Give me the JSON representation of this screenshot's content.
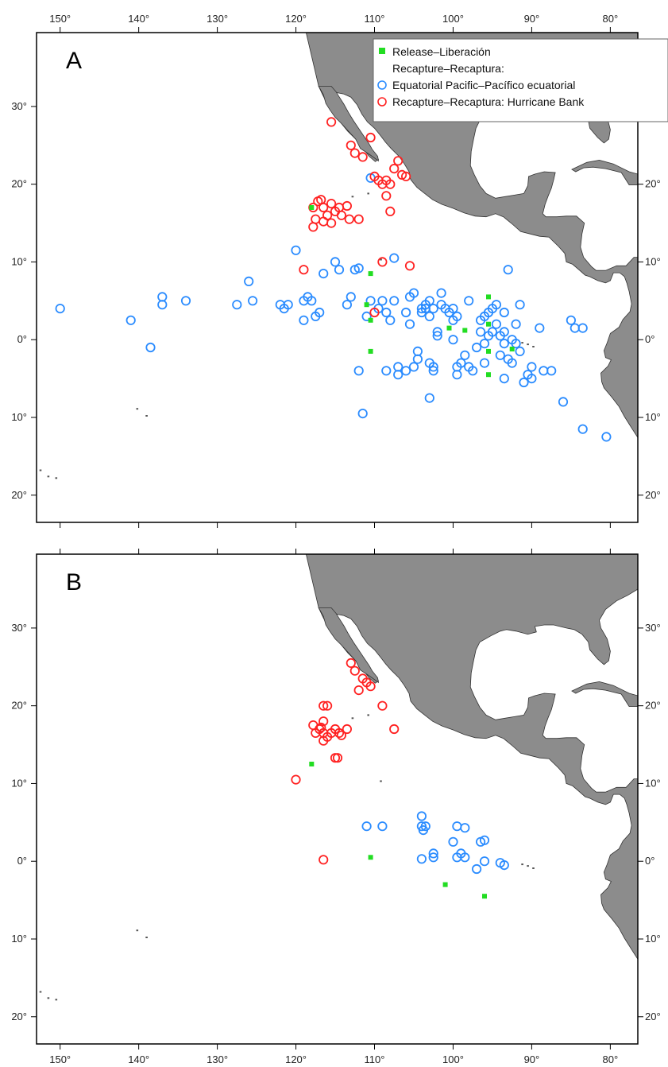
{
  "panels": [
    {
      "label": "A",
      "legend": {
        "items": [
          {
            "marker": "square",
            "color": "#22dd22",
            "text": "Release–Liberación"
          },
          {
            "marker": "none",
            "color": "",
            "text": "Recapture–Recaptura:"
          },
          {
            "marker": "circle",
            "color": "#2b8cff",
            "text": "Equatorial Pacific–Pacífico ecuatorial"
          },
          {
            "marker": "circle",
            "color": "#ff2222",
            "text": "Recapture–Recaptura: Hurricane Bank"
          }
        ]
      },
      "release": [
        [
          -118,
          17
        ],
        [
          -110.5,
          8.5
        ],
        [
          -111,
          4.5
        ],
        [
          -110.5,
          2.5
        ],
        [
          -110.5,
          -1.5
        ],
        [
          -100.5,
          1.5
        ],
        [
          -98.5,
          1.2
        ],
        [
          -95.5,
          5.5
        ],
        [
          -95.5,
          2
        ],
        [
          -95.5,
          -1.5
        ],
        [
          -95.5,
          -4.5
        ],
        [
          -92.5,
          -1.2
        ]
      ],
      "red": [
        [
          -115.5,
          28
        ],
        [
          -113,
          25
        ],
        [
          -112.5,
          24
        ],
        [
          -111.5,
          23.5
        ],
        [
          -110.5,
          26
        ],
        [
          -117.8,
          17
        ],
        [
          -117.2,
          17.8
        ],
        [
          -116.8,
          18
        ],
        [
          -116.5,
          17
        ],
        [
          -116,
          16
        ],
        [
          -115.5,
          17.5
        ],
        [
          -115,
          16.5
        ],
        [
          -114.5,
          17
        ],
        [
          -114.2,
          16
        ],
        [
          -113.5,
          17.2
        ],
        [
          -113.2,
          15.5
        ],
        [
          -112,
          15.5
        ],
        [
          -117.5,
          15.5
        ],
        [
          -117.8,
          14.5
        ],
        [
          -116.5,
          15.2
        ],
        [
          -115.5,
          15
        ],
        [
          -109.5,
          20.5
        ],
        [
          -109,
          20
        ],
        [
          -108.5,
          20.5
        ],
        [
          -108,
          20
        ],
        [
          -108.5,
          18.5
        ],
        [
          -108,
          16.5
        ],
        [
          -107.5,
          22
        ],
        [
          -107,
          23
        ],
        [
          -106,
          21
        ],
        [
          -106.5,
          21.2
        ],
        [
          -110,
          21
        ],
        [
          -119,
          9
        ],
        [
          -109,
          10
        ],
        [
          -105.5,
          9.5
        ],
        [
          -110,
          3.5
        ]
      ],
      "blue": [
        [
          -150,
          4
        ],
        [
          -141,
          2.5
        ],
        [
          -138.5,
          -1
        ],
        [
          -137,
          4.5
        ],
        [
          -137,
          5.5
        ],
        [
          -134,
          5
        ],
        [
          -127.5,
          4.5
        ],
        [
          -126,
          7.5
        ],
        [
          -125.5,
          5
        ],
        [
          -122,
          4.5
        ],
        [
          -121.5,
          4
        ],
        [
          -121,
          4.5
        ],
        [
          -120,
          11.5
        ],
        [
          -119,
          5
        ],
        [
          -119,
          2.5
        ],
        [
          -118.5,
          5.5
        ],
        [
          -118,
          5
        ],
        [
          -117.5,
          3
        ],
        [
          -117,
          3.5
        ],
        [
          -116.5,
          8.5
        ],
        [
          -115,
          10
        ],
        [
          -114.5,
          9
        ],
        [
          -113.5,
          4.5
        ],
        [
          -113,
          5.5
        ],
        [
          -112.5,
          9
        ],
        [
          -112,
          9.2
        ],
        [
          -112,
          -4
        ],
        [
          -111.5,
          -9.5
        ],
        [
          -111,
          3
        ],
        [
          -110.5,
          5
        ],
        [
          -110.5,
          20.8
        ],
        [
          -109.5,
          4
        ],
        [
          -109,
          5
        ],
        [
          -108.5,
          3.5
        ],
        [
          -108.5,
          -4
        ],
        [
          -108,
          2.5
        ],
        [
          -107.5,
          10.5
        ],
        [
          -107.5,
          5
        ],
        [
          -107,
          -4.5
        ],
        [
          -107,
          -3.5
        ],
        [
          -106,
          3.5
        ],
        [
          -106,
          -4
        ],
        [
          -105.5,
          5.5
        ],
        [
          -105.5,
          2
        ],
        [
          -105,
          6
        ],
        [
          -105,
          -3.5
        ],
        [
          -104.5,
          -1.5
        ],
        [
          -104.5,
          -2.5
        ],
        [
          -104,
          4
        ],
        [
          -104,
          3.5
        ],
        [
          -103.5,
          4.5
        ],
        [
          -103.5,
          4
        ],
        [
          -103,
          5
        ],
        [
          -103,
          3
        ],
        [
          -103,
          -7.5
        ],
        [
          -103,
          -3
        ],
        [
          -102.5,
          4
        ],
        [
          -102.5,
          -3.5
        ],
        [
          -102.5,
          -4
        ],
        [
          -102,
          1
        ],
        [
          -102,
          0.5
        ],
        [
          -101.5,
          6
        ],
        [
          -101.5,
          4.5
        ],
        [
          -101,
          4
        ],
        [
          -100.5,
          3.5
        ],
        [
          -100,
          4
        ],
        [
          -100,
          2.5
        ],
        [
          -100,
          0
        ],
        [
          -99.5,
          3
        ],
        [
          -99.5,
          -3.5
        ],
        [
          -99.5,
          -4.5
        ],
        [
          -99,
          -3
        ],
        [
          -98.5,
          -2
        ],
        [
          -98,
          5
        ],
        [
          -98,
          -3.5
        ],
        [
          -97.5,
          -4
        ],
        [
          -97,
          -1
        ],
        [
          -96.5,
          1
        ],
        [
          -96.5,
          2.5
        ],
        [
          -96,
          3
        ],
        [
          -96,
          -0.5
        ],
        [
          -96,
          -3
        ],
        [
          -95.5,
          3.5
        ],
        [
          -95.5,
          0.5
        ],
        [
          -95,
          1
        ],
        [
          -95,
          4
        ],
        [
          -94.5,
          4.5
        ],
        [
          -94.5,
          2
        ],
        [
          -94,
          0.5
        ],
        [
          -94,
          -2
        ],
        [
          -93.5,
          3.5
        ],
        [
          -93.5,
          1
        ],
        [
          -93.5,
          -0.5
        ],
        [
          -93.5,
          -5
        ],
        [
          -93,
          9
        ],
        [
          -93,
          -2.5
        ],
        [
          -92.5,
          0
        ],
        [
          -92.5,
          -3
        ],
        [
          -92,
          2
        ],
        [
          -92,
          -0.5
        ],
        [
          -91.5,
          -1.5
        ],
        [
          -91.5,
          4.5
        ],
        [
          -91,
          -5.5
        ],
        [
          -90.5,
          -4.5
        ],
        [
          -90,
          -3.5
        ],
        [
          -90,
          -5
        ],
        [
          -89,
          1.5
        ],
        [
          -88.5,
          -4
        ],
        [
          -87.5,
          -4
        ],
        [
          -86,
          -8
        ],
        [
          -85,
          2.5
        ],
        [
          -84.5,
          1.5
        ],
        [
          -83.5,
          1.5
        ],
        [
          -83.5,
          -11.5
        ],
        [
          -80.5,
          -12.5
        ]
      ]
    },
    {
      "label": "B",
      "release": [
        [
          -118,
          12.5
        ],
        [
          -110.5,
          0.5
        ],
        [
          -101,
          -3
        ],
        [
          -96,
          -4.5
        ]
      ],
      "red": [
        [
          -113,
          25.5
        ],
        [
          -112.5,
          24.5
        ],
        [
          -111.5,
          23.5
        ],
        [
          -111,
          23
        ],
        [
          -110.5,
          22.5
        ],
        [
          -112,
          22
        ],
        [
          -116.5,
          20
        ],
        [
          -116,
          20
        ],
        [
          -116.5,
          18
        ],
        [
          -116.8,
          17.2
        ],
        [
          -117.5,
          16.5
        ],
        [
          -117.8,
          17.5
        ],
        [
          -117,
          17
        ],
        [
          -116.5,
          16.5
        ],
        [
          -116,
          16
        ],
        [
          -115.5,
          16.5
        ],
        [
          -115,
          17
        ],
        [
          -114.5,
          16.5
        ],
        [
          -114.2,
          16.2
        ],
        [
          -113.5,
          17
        ],
        [
          -115,
          13.3
        ],
        [
          -114.7,
          13.3
        ],
        [
          -116.5,
          15.5
        ],
        [
          -120,
          10.5
        ],
        [
          -109,
          20
        ],
        [
          -107.5,
          17
        ],
        [
          -116.5,
          0.2
        ]
      ],
      "blue": [
        [
          -111,
          4.5
        ],
        [
          -109,
          4.5
        ],
        [
          -104,
          5.8
        ],
        [
          -104,
          4.5
        ],
        [
          -103.8,
          4
        ],
        [
          -103.5,
          4.5
        ],
        [
          -104,
          0.3
        ],
        [
          -102.5,
          0.5
        ],
        [
          -102.5,
          1
        ],
        [
          -100,
          2.5
        ],
        [
          -99.5,
          4.5
        ],
        [
          -98.5,
          4.3
        ],
        [
          -99.5,
          0.5
        ],
        [
          -99,
          1
        ],
        [
          -98.5,
          0.5
        ],
        [
          -97,
          -1
        ],
        [
          -96.5,
          2.5
        ],
        [
          -96,
          2.7
        ],
        [
          -96,
          0
        ],
        [
          -94,
          -0.2
        ],
        [
          -93.5,
          -0.5
        ]
      ]
    }
  ],
  "axes": {
    "lon_ticks": [
      {
        "v": -150,
        "t": "150°"
      },
      {
        "v": -140,
        "t": "140°"
      },
      {
        "v": -130,
        "t": "130°"
      },
      {
        "v": -120,
        "t": "120°"
      },
      {
        "v": -110,
        "t": "110°"
      },
      {
        "v": -100,
        "t": "100°"
      },
      {
        "v": -90,
        "t": "90°"
      },
      {
        "v": -80,
        "t": "80°"
      }
    ],
    "lat_ticks": [
      {
        "v": 30,
        "t": "30°"
      },
      {
        "v": 20,
        "t": "20°"
      },
      {
        "v": 10,
        "t": "10°"
      },
      {
        "v": 0,
        "t": "0°"
      },
      {
        "v": -10,
        "t": "10°"
      },
      {
        "v": -20,
        "t": "20°"
      }
    ],
    "lon_range": [
      -153,
      -76.5
    ],
    "lat_range": [
      -23.5,
      39.5
    ]
  },
  "colors": {
    "land": "#8c8c8c",
    "release": "#22dd22",
    "equatorial": "#2b8cff",
    "hurricane": "#ff2222"
  }
}
